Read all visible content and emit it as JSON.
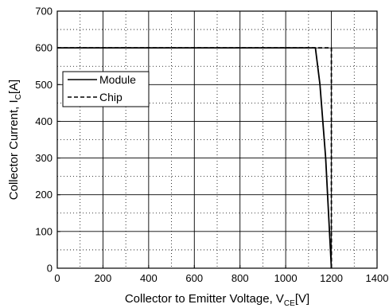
{
  "chart_data": {
    "type": "line",
    "xlabel": {
      "main": "Collector to Emitter Voltage, V",
      "sub": "CE",
      "unit": "[V]"
    },
    "ylabel": {
      "main": "Collector Current, I",
      "sub": "C",
      "unit": "[A]"
    },
    "xlim": [
      0,
      1400
    ],
    "ylim": [
      0,
      700
    ],
    "xticks": [
      0,
      200,
      400,
      600,
      800,
      1000,
      1200,
      1400
    ],
    "yticks": [
      0,
      100,
      200,
      300,
      400,
      500,
      600,
      700
    ],
    "grid": {
      "major": true,
      "minor_dotted": true,
      "minor_x_step": 100,
      "minor_y_step": 50
    },
    "legend": {
      "placement": "upper-left"
    },
    "series": [
      {
        "name": "Module",
        "style": "solid",
        "color": "#000000",
        "x": [
          0,
          1130,
          1150,
          1175,
          1200
        ],
        "y": [
          600,
          600,
          500,
          300,
          0
        ]
      },
      {
        "name": "Chip",
        "style": "dashed",
        "color": "#000000",
        "x": [
          0,
          1200,
          1200
        ],
        "y": [
          600,
          600,
          0
        ]
      }
    ]
  }
}
